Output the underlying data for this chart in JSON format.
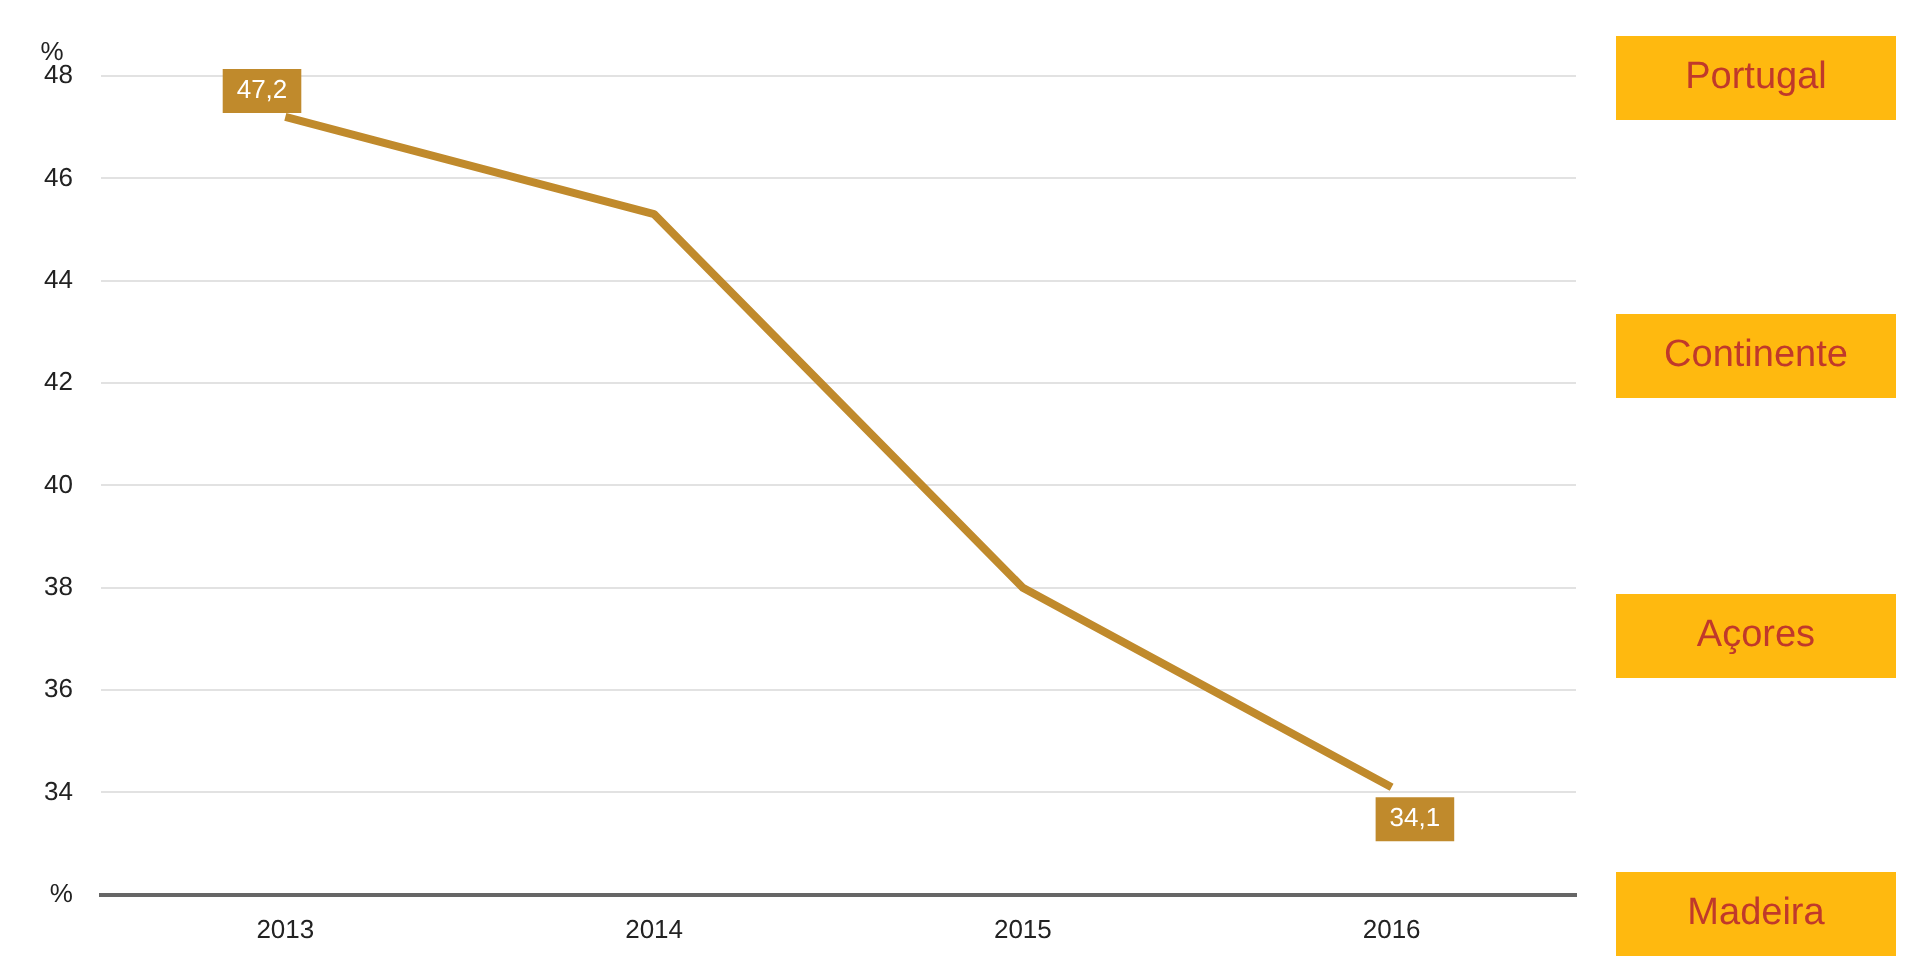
{
  "chart_data": {
    "type": "line",
    "ylabel": "%",
    "categories": [
      "2013",
      "2014",
      "2015",
      "2016"
    ],
    "series": [
      {
        "color": "#c08a2c",
        "values": [
          47.2,
          45.3,
          38,
          34.1
        ],
        "value_labels": [
          "47,2",
          null,
          null,
          "34,1"
        ]
      }
    ],
    "ylim": [
      32,
      48
    ],
    "yticks": [
      {
        "value": 32,
        "label": "%"
      },
      34,
      36,
      38,
      40,
      42,
      44,
      46,
      48
    ],
    "grid": "y",
    "marker": "none",
    "line_style": "solid",
    "annotations": [
      "Portugal",
      "Continente",
      "Açores",
      "Madeira"
    ]
  }
}
